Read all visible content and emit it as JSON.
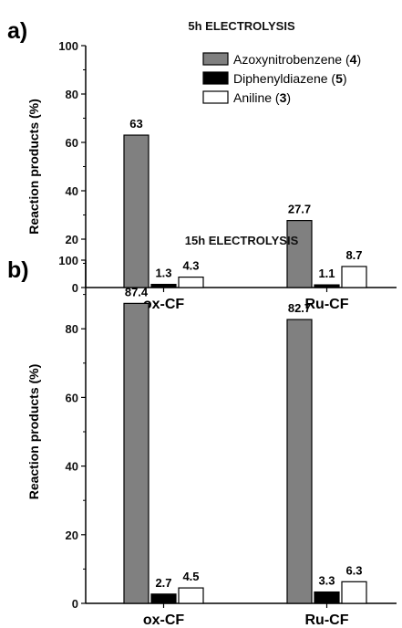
{
  "legend": [
    {
      "pre": "Azoxynitrobenzene (",
      "num": "4",
      "post": ")",
      "color": "#808080"
    },
    {
      "pre": "Diphenyldiazene (",
      "num": "5",
      "post": ")",
      "color": "#000000"
    },
    {
      "pre": "Aniline (",
      "num": "3",
      "post": ")",
      "color": "#ffffff"
    }
  ],
  "chart_data": [
    {
      "type": "bar",
      "panel": "a)",
      "title": "5h ELECTROLYSIS",
      "ylabel": "Reaction products (%)",
      "xlabel": "",
      "ylim": [
        0,
        100
      ],
      "yticks": [
        0,
        20,
        40,
        60,
        80,
        100
      ],
      "categories": [
        "ox-CF",
        "Ru-CF"
      ],
      "series": [
        {
          "name": "Azoxynitrobenzene (4)",
          "values": [
            63,
            27.7
          ],
          "labels": [
            "63",
            "27.7"
          ],
          "color": "#808080"
        },
        {
          "name": "Diphenyldiazene (5)",
          "values": [
            1.3,
            1.1
          ],
          "labels": [
            "1.3",
            "1.1"
          ],
          "color": "#000000"
        },
        {
          "name": "Aniline (3)",
          "values": [
            4.3,
            8.7
          ],
          "labels": [
            "4.3",
            "8.7"
          ],
          "color": "#ffffff"
        }
      ],
      "legend_position": "top-right"
    },
    {
      "type": "bar",
      "panel": "b)",
      "title": "15h ELECTROLYSIS",
      "ylabel": "Reaction products (%)",
      "xlabel": "",
      "ylim": [
        0,
        100
      ],
      "yticks": [
        0,
        20,
        40,
        60,
        80,
        100
      ],
      "categories": [
        "ox-CF",
        "Ru-CF"
      ],
      "series": [
        {
          "name": "Azoxynitrobenzene (4)",
          "values": [
            87.4,
            82.7
          ],
          "labels": [
            "87.4",
            "82.7"
          ],
          "color": "#808080"
        },
        {
          "name": "Diphenyldiazene (5)",
          "values": [
            2.7,
            3.3
          ],
          "labels": [
            "2.7",
            "3.3"
          ],
          "color": "#000000"
        },
        {
          "name": "Aniline (3)",
          "values": [
            4.5,
            6.3
          ],
          "labels": [
            "4.5",
            "6.3"
          ],
          "color": "#ffffff"
        }
      ]
    }
  ]
}
